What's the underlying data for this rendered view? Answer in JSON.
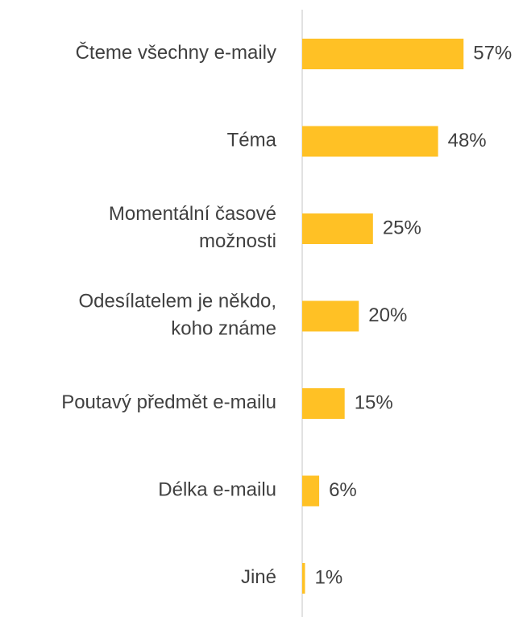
{
  "chart_data": {
    "type": "bar",
    "orientation": "horizontal",
    "categories": [
      "Čteme všechny e-maily",
      "Téma",
      "Momentální časové\nmožnosti",
      "Odesílatelem je někdo,\nkoho známe",
      "Poutavý předmět e-mailu",
      "Délka e-mailu",
      "Jiné"
    ],
    "values": [
      57,
      48,
      25,
      20,
      15,
      6,
      1
    ],
    "value_labels": [
      "57%",
      "48%",
      "25%",
      "20%",
      "15%",
      "6%",
      "1%"
    ],
    "color": "#ffc125",
    "xlim": [
      0,
      78
    ]
  }
}
